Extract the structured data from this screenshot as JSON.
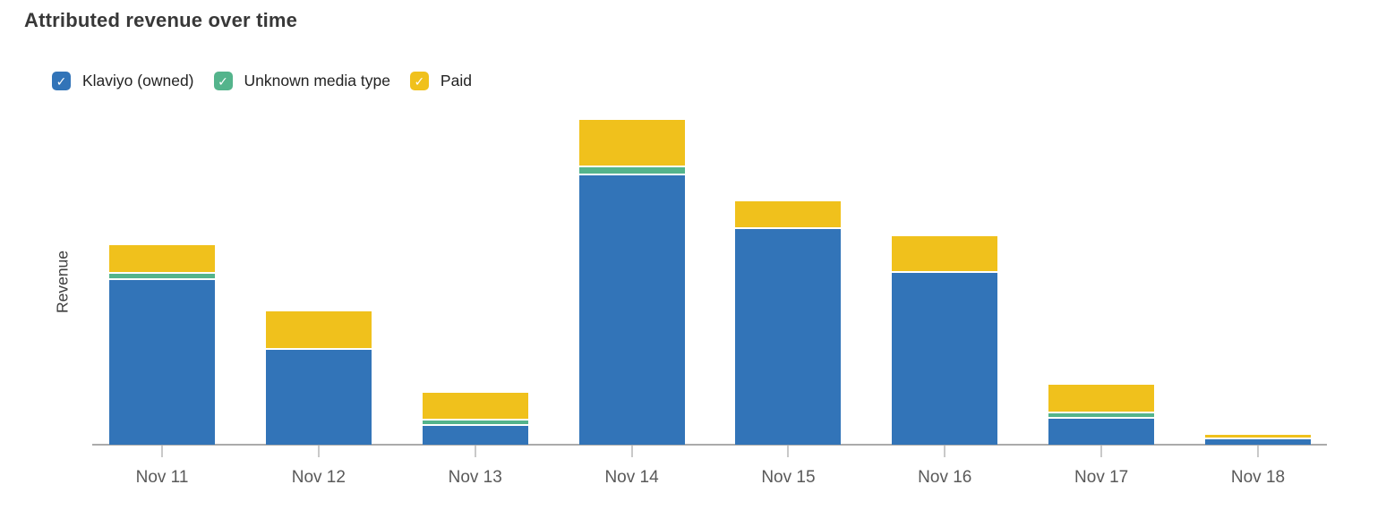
{
  "header": {
    "title": "Attributed revenue over time"
  },
  "legend": {
    "check_glyph": "✓",
    "items": [
      {
        "label": "Klaviyo (owned)",
        "color": "#3274B8",
        "checked": true
      },
      {
        "label": "Unknown media type",
        "color": "#54B48C",
        "checked": true
      },
      {
        "label": "Paid",
        "color": "#F0C11C",
        "checked": true
      }
    ]
  },
  "axis": {
    "ylabel": "Revenue"
  },
  "chart_data": {
    "type": "bar",
    "stacked": true,
    "title": "Attributed revenue over time",
    "xlabel": "",
    "ylabel": "Revenue",
    "grid": false,
    "legend_position": "top-left",
    "y_axis_tick_labels": "none (axis is unlabeled, only the word Revenue)",
    "value_units": "relative height units estimated from pixels (no numeric y ticks shown)",
    "categories": [
      "Nov 11",
      "Nov 12",
      "Nov 13",
      "Nov 14",
      "Nov 15",
      "Nov 16",
      "Nov 17",
      "Nov 18"
    ],
    "series": [
      {
        "name": "Klaviyo (owned)",
        "color": "#3274B8",
        "values": [
          184,
          106,
          21,
          301,
          241,
          192,
          29,
          6
        ]
      },
      {
        "name": "Unknown media type",
        "color": "#54B48C",
        "values": [
          5,
          0,
          4,
          7,
          0,
          0,
          4,
          0
        ]
      },
      {
        "name": "Paid",
        "color": "#F0C11C",
        "values": [
          30,
          41,
          29,
          51,
          29,
          39,
          30,
          3
        ]
      }
    ],
    "ylim": [
      0,
      380
    ]
  }
}
